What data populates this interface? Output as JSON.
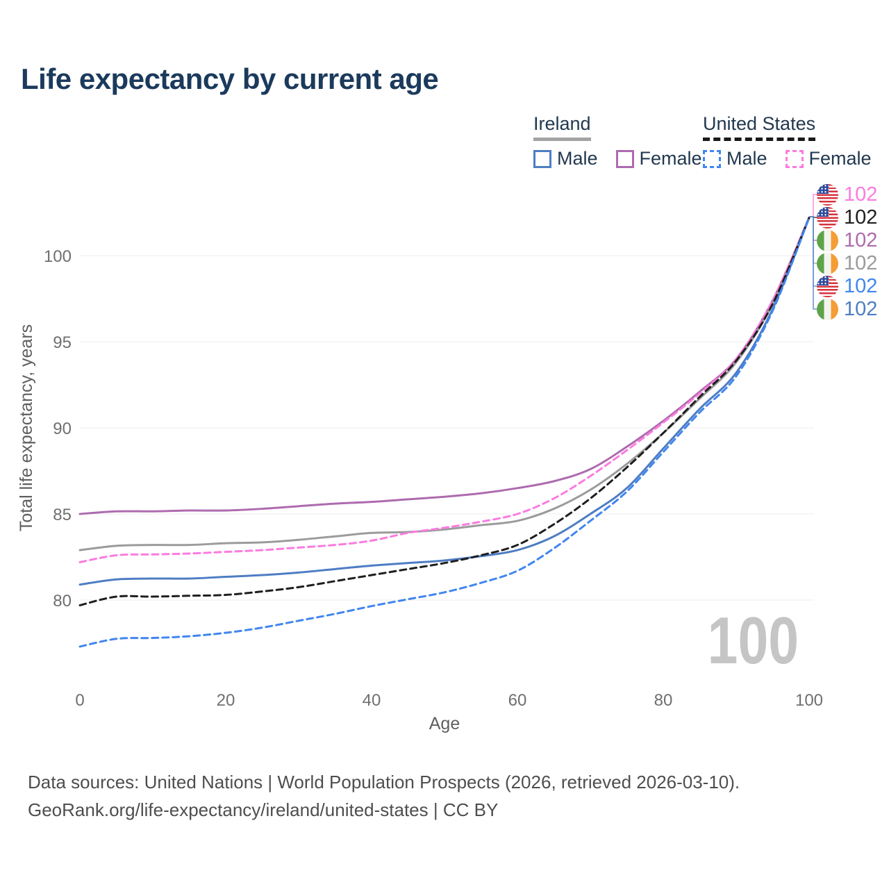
{
  "title": "Life expectancy by current age",
  "watermark": "100",
  "legend": {
    "groups": [
      {
        "name": "Ireland",
        "underline_color": "#a3a3a3",
        "underline_style": "solid",
        "items": [
          {
            "label": "Male",
            "color": "#4e7dc3",
            "dash": false
          },
          {
            "label": "Female",
            "color": "#ae6bae",
            "dash": false
          }
        ]
      },
      {
        "name": "United States",
        "underline_color": "#1a1a1a",
        "underline_style": "dashed",
        "items": [
          {
            "label": "Male",
            "color": "#4186ef",
            "dash": true
          },
          {
            "label": "Female",
            "color": "#fb7be0",
            "dash": true
          }
        ]
      }
    ]
  },
  "footer": {
    "line1": "Data sources: United Nations | World Population Prospects (2026, retrieved 2026-03-10).",
    "line2": "GeoRank.org/life-expectancy/ireland/united-states | CC BY"
  },
  "chart_data": {
    "type": "line",
    "title": "Life expectancy by current age",
    "xlabel": "Age",
    "ylabel": "Total life expectancy, years",
    "xlim": [
      0,
      100
    ],
    "ylim": [
      76.5,
      103.5
    ],
    "grid": true,
    "legend_position": "top-right",
    "x_ticks": [
      0,
      20,
      40,
      60,
      80,
      100
    ],
    "y_ticks": [
      80,
      85,
      90,
      95,
      100
    ],
    "x": [
      0,
      5,
      10,
      15,
      20,
      25,
      30,
      35,
      40,
      45,
      50,
      55,
      60,
      65,
      70,
      75,
      80,
      85,
      90,
      95,
      100
    ],
    "series": [
      {
        "name": "United States Female",
        "color": "#fb7be0",
        "dash": true,
        "flag": "us",
        "end_label": "102",
        "values": [
          82.2,
          82.6,
          82.65,
          82.7,
          82.8,
          82.9,
          83.05,
          83.2,
          83.45,
          83.9,
          84.2,
          84.55,
          85.0,
          85.9,
          87.2,
          88.7,
          90.3,
          92.0,
          94.0,
          97.4,
          102.2
        ]
      },
      {
        "name": "United States Total",
        "color": "#1f1f1f",
        "dash": true,
        "flag": "us",
        "end_label": "102",
        "values": [
          79.7,
          80.2,
          80.2,
          80.25,
          80.3,
          80.5,
          80.75,
          81.1,
          81.45,
          81.8,
          82.15,
          82.6,
          83.2,
          84.4,
          85.9,
          87.7,
          89.7,
          91.8,
          93.9,
          97.2,
          102.2
        ]
      },
      {
        "name": "Ireland Female",
        "color": "#ae6bae",
        "dash": false,
        "flag": "ie",
        "end_label": "102",
        "values": [
          85.0,
          85.15,
          85.15,
          85.2,
          85.2,
          85.3,
          85.45,
          85.6,
          85.7,
          85.85,
          86.0,
          86.2,
          86.5,
          86.9,
          87.6,
          88.9,
          90.4,
          92.1,
          94.0,
          97.4,
          102.2
        ]
      },
      {
        "name": "Ireland Total",
        "color": "#9b9b9b",
        "dash": false,
        "flag": "ie",
        "end_label": "102",
        "values": [
          82.9,
          83.15,
          83.2,
          83.2,
          83.3,
          83.35,
          83.5,
          83.7,
          83.9,
          83.95,
          84.1,
          84.35,
          84.6,
          85.3,
          86.4,
          87.9,
          89.7,
          91.7,
          93.8,
          97.2,
          102.2
        ]
      },
      {
        "name": "United States Male",
        "color": "#4186ef",
        "dash": true,
        "flag": "us",
        "end_label": "102",
        "values": [
          77.3,
          77.75,
          77.8,
          77.9,
          78.1,
          78.4,
          78.8,
          79.2,
          79.65,
          80.05,
          80.45,
          81.0,
          81.7,
          83.0,
          84.6,
          86.3,
          88.6,
          90.9,
          93.0,
          96.8,
          102.2
        ]
      },
      {
        "name": "Ireland Male",
        "color": "#4e7dc3",
        "dash": false,
        "flag": "ie",
        "end_label": "102",
        "values": [
          80.9,
          81.2,
          81.25,
          81.25,
          81.35,
          81.45,
          81.6,
          81.8,
          82.0,
          82.15,
          82.3,
          82.55,
          82.9,
          83.7,
          85.0,
          86.5,
          88.8,
          91.1,
          93.2,
          96.9,
          102.2
        ]
      }
    ]
  }
}
